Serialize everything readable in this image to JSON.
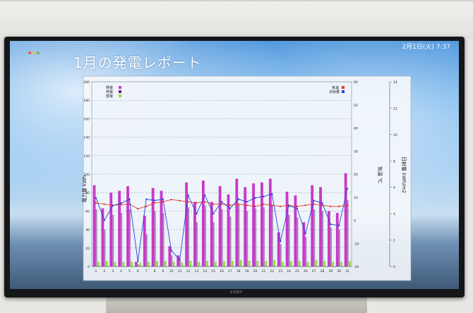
{
  "screen": {
    "title": "1月の発電レポート",
    "datetime": "2月1日(火) 7:37",
    "brand": "SONY"
  },
  "colors": {
    "generation": "#c738c9",
    "consumption": "#7a2080",
    "discharge": "#8ede3a",
    "temperature": "#e23a2a",
    "irradiance": "#2a3fd9"
  },
  "chart_data": {
    "type": "bar",
    "categories": [
      "1",
      "2",
      "3",
      "4",
      "5",
      "6",
      "7",
      "8",
      "9",
      "10",
      "11",
      "12",
      "13",
      "14",
      "15",
      "16",
      "17",
      "18",
      "19",
      "20",
      "21",
      "22",
      "23",
      "24",
      "25",
      "26",
      "27",
      "28",
      "29",
      "30",
      "31"
    ],
    "legend_left": [
      "発電",
      "売電",
      "放電"
    ],
    "legend_right": [
      "気温",
      "日射量"
    ],
    "ylabel_left": "電力量 kWh",
    "ylabel_right1": "気温 ℃",
    "ylabel_right2": "日射量 kWh/m2",
    "y_left_range": [
      0,
      200
    ],
    "y_left_ticks": [
      "0",
      "20",
      "40",
      "60",
      "80",
      "100",
      "120",
      "140",
      "160",
      "180",
      "200"
    ],
    "y_right1_range": [
      -20,
      60
    ],
    "y_right1_ticks": [
      "-20",
      "-10",
      "0",
      "10",
      "20",
      "30",
      "40",
      "50",
      "60"
    ],
    "y_right2_range": [
      0,
      14
    ],
    "y_right2_ticks": [
      "0",
      "2",
      "4",
      "6",
      "8",
      "10",
      "12",
      "14"
    ],
    "grid": true,
    "series": [
      {
        "name": "発電",
        "values": [
          88,
          63,
          80,
          82,
          87,
          5,
          55,
          85,
          82,
          22,
          12,
          91,
          70,
          93,
          70,
          87,
          78,
          95,
          86,
          90,
          91,
          95,
          37,
          81,
          77,
          48,
          88,
          86,
          60,
          58,
          101
        ]
      },
      {
        "name": "売電",
        "values": [
          62,
          40,
          56,
          58,
          62,
          2,
          35,
          60,
          58,
          12,
          6,
          64,
          48,
          66,
          48,
          62,
          54,
          67,
          60,
          63,
          64,
          67,
          24,
          56,
          53,
          32,
          62,
          60,
          42,
          40,
          72
        ]
      },
      {
        "name": "放電",
        "values": [
          5,
          6,
          5,
          5,
          5,
          4,
          5,
          6,
          6,
          5,
          4,
          6,
          5,
          6,
          5,
          6,
          6,
          7,
          6,
          6,
          6,
          7,
          5,
          6,
          6,
          5,
          7,
          6,
          5,
          5,
          6
        ]
      },
      {
        "name": "気温",
        "values": [
          7.5,
          7.0,
          6.5,
          6.8,
          7.0,
          5.0,
          6.0,
          7.5,
          8.0,
          9.0,
          8.5,
          8.0,
          7.5,
          8.0,
          7.0,
          7.0,
          6.5,
          7.0,
          6.5,
          6.0,
          7.0,
          6.5,
          6.0,
          6.5,
          6.0,
          6.5,
          7.0,
          6.5,
          6.0,
          6.0,
          6.5
        ]
      },
      {
        "name": "日射量",
        "values": [
          5.2,
          3.5,
          4.6,
          4.8,
          5.1,
          0.4,
          5.1,
          5.0,
          5.1,
          1.2,
          0.5,
          5.4,
          4.0,
          5.4,
          4.0,
          4.9,
          4.4,
          5.1,
          4.9,
          5.2,
          5.3,
          5.5,
          1.9,
          4.6,
          4.4,
          2.5,
          5.0,
          4.8,
          3.2,
          3.1,
          5.9
        ]
      }
    ]
  }
}
